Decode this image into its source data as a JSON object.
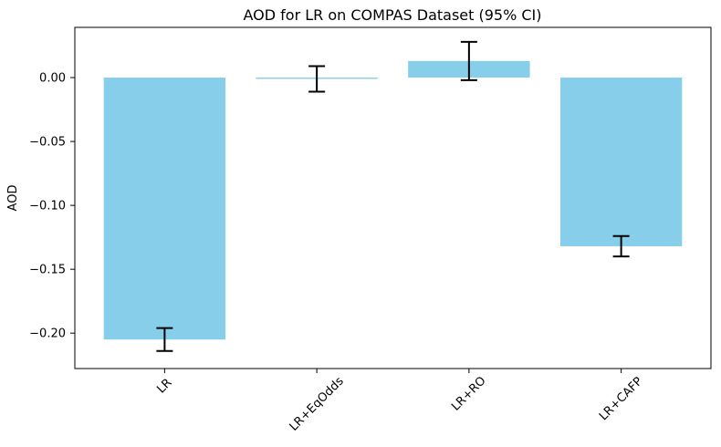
{
  "chart_data": {
    "type": "bar",
    "title": "AOD for LR on COMPAS Dataset (95% CI)",
    "xlabel": "",
    "ylabel": "AOD",
    "categories": [
      "LR",
      "LR+EqOdds",
      "LR+RO",
      "LR+CAFP"
    ],
    "values": [
      -0.205,
      -0.001,
      0.013,
      -0.132
    ],
    "error_95ci": [
      0.009,
      0.01,
      0.015,
      0.008
    ],
    "series": [
      {
        "name": "AOD",
        "values": [
          -0.205,
          -0.001,
          0.013,
          -0.132
        ],
        "ci_low": [
          -0.214,
          -0.011,
          -0.002,
          -0.14
        ],
        "ci_high": [
          -0.196,
          0.009,
          0.028,
          -0.124
        ]
      }
    ],
    "yticks": [
      {
        "value": 0.0,
        "label": "0.00"
      },
      {
        "value": -0.05,
        "label": "−0.05"
      },
      {
        "value": -0.1,
        "label": "−0.10"
      },
      {
        "value": -0.15,
        "label": "−0.15"
      },
      {
        "value": -0.2,
        "label": "−0.20"
      }
    ],
    "ylim": [
      -0.2277,
      0.0393
    ],
    "xlim": [
      -0.59,
      3.59
    ],
    "bar_width_fraction": 0.8,
    "x_tick_rotation_deg": 45,
    "bar_color": "#87CEEB",
    "error_color": "#000000",
    "axis_color": "#000000",
    "background_color": "#FFFFFF",
    "grid": "off",
    "legend": "none"
  }
}
